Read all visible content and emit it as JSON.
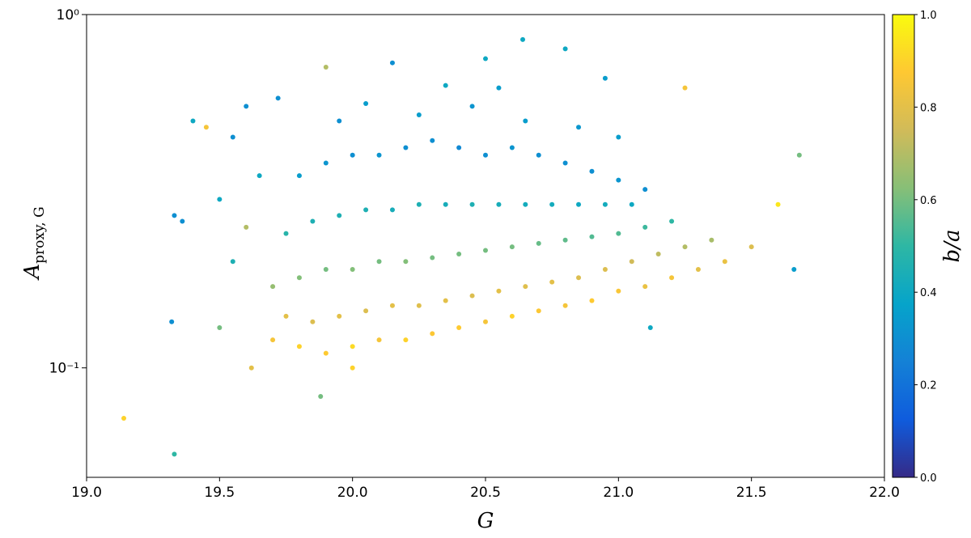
{
  "chart_data": {
    "type": "scatter",
    "xlabel": "G",
    "ylabel": {
      "main": "A",
      "sub": "proxy, G"
    },
    "xlim": [
      19,
      22
    ],
    "xticks": [
      {
        "value": 19,
        "label": "19.0"
      },
      19.5,
      {
        "value": 20,
        "label": "20.0"
      },
      20.5,
      {
        "value": 21,
        "label": "21.0"
      },
      21.5,
      {
        "value": 22,
        "label": "22.0"
      }
    ],
    "ylim": [
      0.049,
      1
    ],
    "yscale": "log",
    "yticks": [
      {
        "value": 1,
        "label": "10⁰"
      },
      {
        "value": 0.1,
        "label": "10⁻¹"
      }
    ],
    "colormap": [
      "#352a87",
      "#0f5cdd",
      "#1481d6",
      "#06a4ca",
      "#2eb7a4",
      "#87bf77",
      "#d1bb59",
      "#fec832",
      "#f9fb0e"
    ],
    "colorbar": {
      "label": "b/a",
      "lim": [
        0,
        1
      ],
      "ticks": [
        {
          "value": 0,
          "label": "0.0"
        },
        0.2,
        0.4,
        0.6,
        0.8,
        {
          "value": 1,
          "label": "1.0"
        }
      ]
    },
    "series": [
      {
        "x": [
          19.14,
          19.33,
          19.32,
          19.33,
          19.36,
          19.4,
          19.45,
          19.55,
          19.6,
          19.88,
          19.9,
          20.15,
          20.5,
          20.64,
          20.8,
          21.25,
          21.68,
          21.66,
          21.6,
          21.12,
          20.95,
          19.72,
          20.0,
          19.7,
          19.8,
          19.9,
          20.0,
          20.1,
          20.2,
          20.3,
          20.4,
          20.5,
          20.6,
          20.7,
          20.8,
          20.9,
          21.0,
          21.1,
          21.2,
          21.3,
          21.4,
          21.5,
          19.75,
          19.85,
          19.95,
          20.05,
          20.15,
          20.25,
          20.35,
          20.45,
          20.55,
          20.65,
          20.75,
          20.85,
          20.95,
          21.05,
          21.15,
          21.25,
          21.35,
          19.7,
          19.8,
          19.9,
          20.0,
          20.1,
          20.2,
          20.3,
          20.4,
          20.5,
          20.6,
          20.7,
          20.8,
          20.9,
          21.0,
          21.1,
          21.2,
          19.75,
          19.85,
          19.95,
          20.05,
          20.15,
          20.25,
          20.35,
          20.45,
          20.55,
          20.65,
          20.75,
          20.85,
          20.95,
          21.05,
          19.8,
          19.9,
          20.0,
          20.1,
          20.2,
          20.3,
          20.4,
          20.5,
          20.6,
          20.7,
          20.8,
          20.9,
          21.0,
          21.1,
          20.25,
          20.45,
          20.05,
          20.65,
          20.85,
          19.95,
          20.55,
          20.35,
          21.0,
          19.5,
          19.55,
          19.6,
          19.62,
          19.5,
          19.65
        ],
        "values": [
          0.072,
          0.057,
          0.135,
          0.27,
          0.26,
          0.5,
          0.48,
          0.45,
          0.55,
          0.083,
          0.71,
          0.73,
          0.75,
          0.85,
          0.8,
          0.62,
          0.4,
          0.19,
          0.29,
          0.13,
          0.66,
          0.58,
          0.1,
          0.12,
          0.115,
          0.11,
          0.115,
          0.12,
          0.12,
          0.125,
          0.13,
          0.135,
          0.14,
          0.145,
          0.15,
          0.155,
          0.165,
          0.17,
          0.18,
          0.19,
          0.2,
          0.22,
          0.14,
          0.135,
          0.14,
          0.145,
          0.15,
          0.15,
          0.155,
          0.16,
          0.165,
          0.17,
          0.175,
          0.18,
          0.19,
          0.2,
          0.21,
          0.22,
          0.23,
          0.17,
          0.18,
          0.19,
          0.19,
          0.2,
          0.2,
          0.205,
          0.21,
          0.215,
          0.22,
          0.225,
          0.23,
          0.235,
          0.24,
          0.25,
          0.26,
          0.24,
          0.26,
          0.27,
          0.28,
          0.28,
          0.29,
          0.29,
          0.29,
          0.29,
          0.29,
          0.29,
          0.29,
          0.29,
          0.29,
          0.35,
          0.38,
          0.4,
          0.4,
          0.42,
          0.44,
          0.42,
          0.4,
          0.42,
          0.4,
          0.38,
          0.36,
          0.34,
          0.32,
          0.52,
          0.55,
          0.56,
          0.5,
          0.48,
          0.5,
          0.62,
          0.63,
          0.45,
          0.13,
          0.2,
          0.25,
          0.1,
          0.3,
          0.35
        ],
        "c": [
          0.9,
          0.5,
          0.3,
          0.3,
          0.3,
          0.4,
          0.85,
          0.3,
          0.3,
          0.6,
          0.7,
          0.3,
          0.4,
          0.4,
          0.4,
          0.85,
          0.6,
          0.35,
          0.95,
          0.4,
          0.35,
          0.3,
          0.9,
          0.85,
          0.9,
          0.88,
          0.92,
          0.85,
          0.9,
          0.87,
          0.88,
          0.85,
          0.9,
          0.87,
          0.85,
          0.88,
          0.86,
          0.82,
          0.85,
          0.8,
          0.82,
          0.78,
          0.8,
          0.78,
          0.8,
          0.78,
          0.8,
          0.79,
          0.8,
          0.78,
          0.8,
          0.79,
          0.8,
          0.78,
          0.78,
          0.75,
          0.72,
          0.7,
          0.68,
          0.65,
          0.62,
          0.6,
          0.62,
          0.6,
          0.62,
          0.6,
          0.6,
          0.6,
          0.6,
          0.58,
          0.57,
          0.55,
          0.55,
          0.52,
          0.5,
          0.48,
          0.45,
          0.45,
          0.45,
          0.43,
          0.45,
          0.43,
          0.45,
          0.43,
          0.42,
          0.42,
          0.4,
          0.42,
          0.4,
          0.35,
          0.32,
          0.3,
          0.32,
          0.3,
          0.3,
          0.28,
          0.3,
          0.32,
          0.3,
          0.3,
          0.3,
          0.32,
          0.3,
          0.35,
          0.32,
          0.35,
          0.35,
          0.33,
          0.3,
          0.35,
          0.4,
          0.35,
          0.6,
          0.45,
          0.7,
          0.8,
          0.4,
          0.4
        ]
      }
    ]
  }
}
